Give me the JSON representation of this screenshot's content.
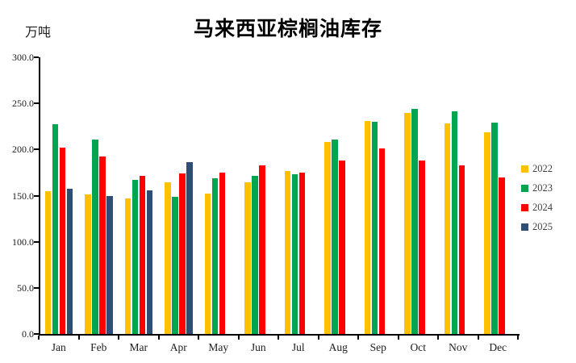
{
  "chart_data": {
    "type": "bar",
    "title": "马来西亚棕榈油库存",
    "unit_label": "万吨",
    "categories": [
      "Jan",
      "Feb",
      "Mar",
      "Apr",
      "May",
      "Jun",
      "Jul",
      "Aug",
      "Sep",
      "Oct",
      "Nov",
      "Dec"
    ],
    "series": [
      {
        "name": "2022",
        "color": "#FFC000",
        "values": [
          155,
          151,
          147,
          164,
          152,
          164,
          177,
          208,
          231,
          240,
          228,
          219
        ]
      },
      {
        "name": "2023",
        "color": "#00A550",
        "values": [
          227,
          211,
          167,
          149,
          169,
          171,
          173,
          211,
          230,
          244,
          241,
          229
        ]
      },
      {
        "name": "2024",
        "color": "#FF0000",
        "values": [
          202,
          192,
          171,
          174,
          175,
          183,
          175,
          188,
          201,
          188,
          183,
          170
        ]
      },
      {
        "name": "2025",
        "color": "#2F4E75",
        "values": [
          157,
          150,
          156,
          186,
          null,
          null,
          null,
          null,
          null,
          null,
          null,
          null
        ]
      }
    ],
    "ylim": [
      0,
      300
    ],
    "y_ticks": [
      {
        "value": 0,
        "label": "0.0"
      },
      {
        "value": 50,
        "label": "50.0"
      },
      {
        "value": 100,
        "label": "100.0"
      },
      {
        "value": 150,
        "label": "150.0"
      },
      {
        "value": 200,
        "label": "200.0"
      },
      {
        "value": 250,
        "label": "250.0"
      },
      {
        "value": 300,
        "label": "300.0"
      }
    ],
    "grid": false,
    "legend_position": "right",
    "axis_color": "#000000"
  }
}
